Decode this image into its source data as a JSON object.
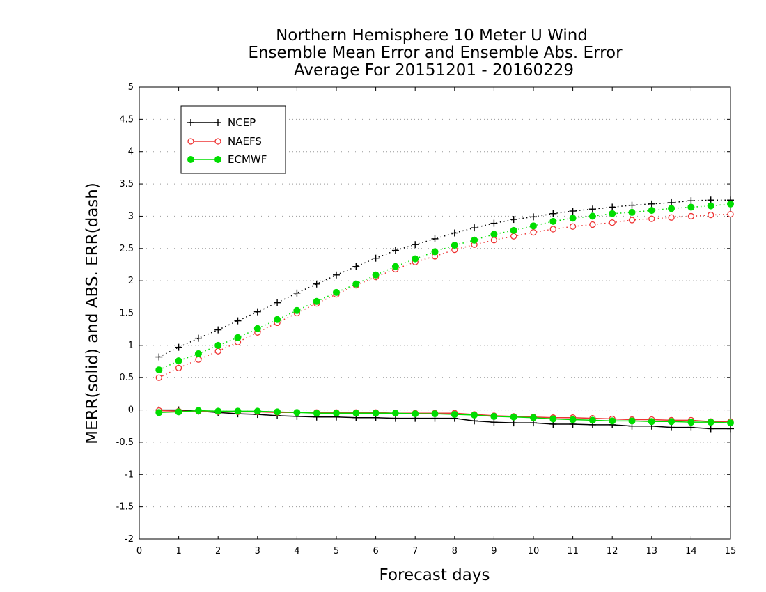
{
  "chart_data": {
    "type": "line",
    "title": [
      "Northern Hemisphere 10 Meter U Wind",
      "Ensemble Mean Error and Ensemble Abs. Error",
      "Average For 20151201 - 20160229"
    ],
    "xlabel": "Forecast days",
    "ylabel": "MERR(solid) and ABS. ERR(dash)",
    "xlim": [
      0,
      15
    ],
    "ylim": [
      -2,
      5
    ],
    "x_ticks": [
      "0",
      "1",
      "2",
      "3",
      "4",
      "5",
      "6",
      "7",
      "8",
      "9",
      "10",
      "11",
      "12",
      "13",
      "14",
      "15"
    ],
    "y_ticks": [
      "-2",
      "-1.5",
      "-1",
      "-0.5",
      "0",
      "0.5",
      "1",
      "1.5",
      "2",
      "2.5",
      "3",
      "3.5",
      "4",
      "4.5",
      "5"
    ],
    "grid": "dotted horizontal",
    "legend_position": "top-left",
    "x": [
      0.5,
      1,
      1.5,
      2,
      2.5,
      3,
      3.5,
      4,
      4.5,
      5,
      5.5,
      6,
      6.5,
      7,
      7.5,
      8,
      8.5,
      9,
      9.5,
      10,
      10.5,
      11,
      11.5,
      12,
      12.5,
      13,
      13.5,
      14,
      14.5,
      15
    ],
    "series": [
      {
        "name": "NCEP",
        "color": "#000000",
        "marker": "plus",
        "abs_err": [
          0.82,
          0.97,
          1.11,
          1.24,
          1.38,
          1.52,
          1.66,
          1.81,
          1.95,
          2.09,
          2.22,
          2.35,
          2.47,
          2.56,
          2.65,
          2.74,
          2.82,
          2.89,
          2.95,
          2.99,
          3.04,
          3.08,
          3.11,
          3.14,
          3.17,
          3.19,
          3.21,
          3.24,
          3.25,
          3.25
        ],
        "mean_err": [
          0.0,
          0.0,
          -0.02,
          -0.04,
          -0.06,
          -0.07,
          -0.09,
          -0.1,
          -0.11,
          -0.11,
          -0.12,
          -0.12,
          -0.13,
          -0.13,
          -0.13,
          -0.13,
          -0.17,
          -0.19,
          -0.2,
          -0.2,
          -0.22,
          -0.22,
          -0.23,
          -0.23,
          -0.25,
          -0.25,
          -0.27,
          -0.27,
          -0.29,
          -0.29
        ]
      },
      {
        "name": "NAEFS",
        "color": "#ee3333",
        "marker": "open-circle",
        "abs_err": [
          0.5,
          0.65,
          0.78,
          0.91,
          1.05,
          1.2,
          1.35,
          1.5,
          1.65,
          1.79,
          1.93,
          2.06,
          2.18,
          2.29,
          2.38,
          2.48,
          2.56,
          2.63,
          2.69,
          2.75,
          2.8,
          2.84,
          2.87,
          2.9,
          2.94,
          2.96,
          2.98,
          3.0,
          3.02,
          3.03
        ],
        "mean_err": [
          -0.01,
          -0.02,
          -0.02,
          -0.03,
          -0.03,
          -0.03,
          -0.04,
          -0.04,
          -0.04,
          -0.04,
          -0.04,
          -0.04,
          -0.05,
          -0.05,
          -0.05,
          -0.05,
          -0.07,
          -0.09,
          -0.1,
          -0.11,
          -0.12,
          -0.12,
          -0.13,
          -0.14,
          -0.15,
          -0.15,
          -0.16,
          -0.16,
          -0.18,
          -0.18
        ]
      },
      {
        "name": "ECMWF",
        "color": "#00dd00",
        "marker": "filled-circle",
        "abs_err": [
          0.62,
          0.76,
          0.87,
          1.0,
          1.12,
          1.26,
          1.4,
          1.54,
          1.68,
          1.82,
          1.95,
          2.09,
          2.22,
          2.34,
          2.45,
          2.55,
          2.63,
          2.72,
          2.78,
          2.85,
          2.92,
          2.97,
          3.0,
          3.04,
          3.06,
          3.09,
          3.12,
          3.14,
          3.16,
          3.19
        ],
        "mean_err": [
          -0.04,
          -0.03,
          -0.01,
          -0.02,
          -0.02,
          -0.02,
          -0.03,
          -0.04,
          -0.05,
          -0.05,
          -0.05,
          -0.05,
          -0.05,
          -0.06,
          -0.06,
          -0.07,
          -0.08,
          -0.1,
          -0.11,
          -0.12,
          -0.14,
          -0.15,
          -0.16,
          -0.17,
          -0.17,
          -0.18,
          -0.18,
          -0.19,
          -0.19,
          -0.2
        ]
      }
    ]
  }
}
